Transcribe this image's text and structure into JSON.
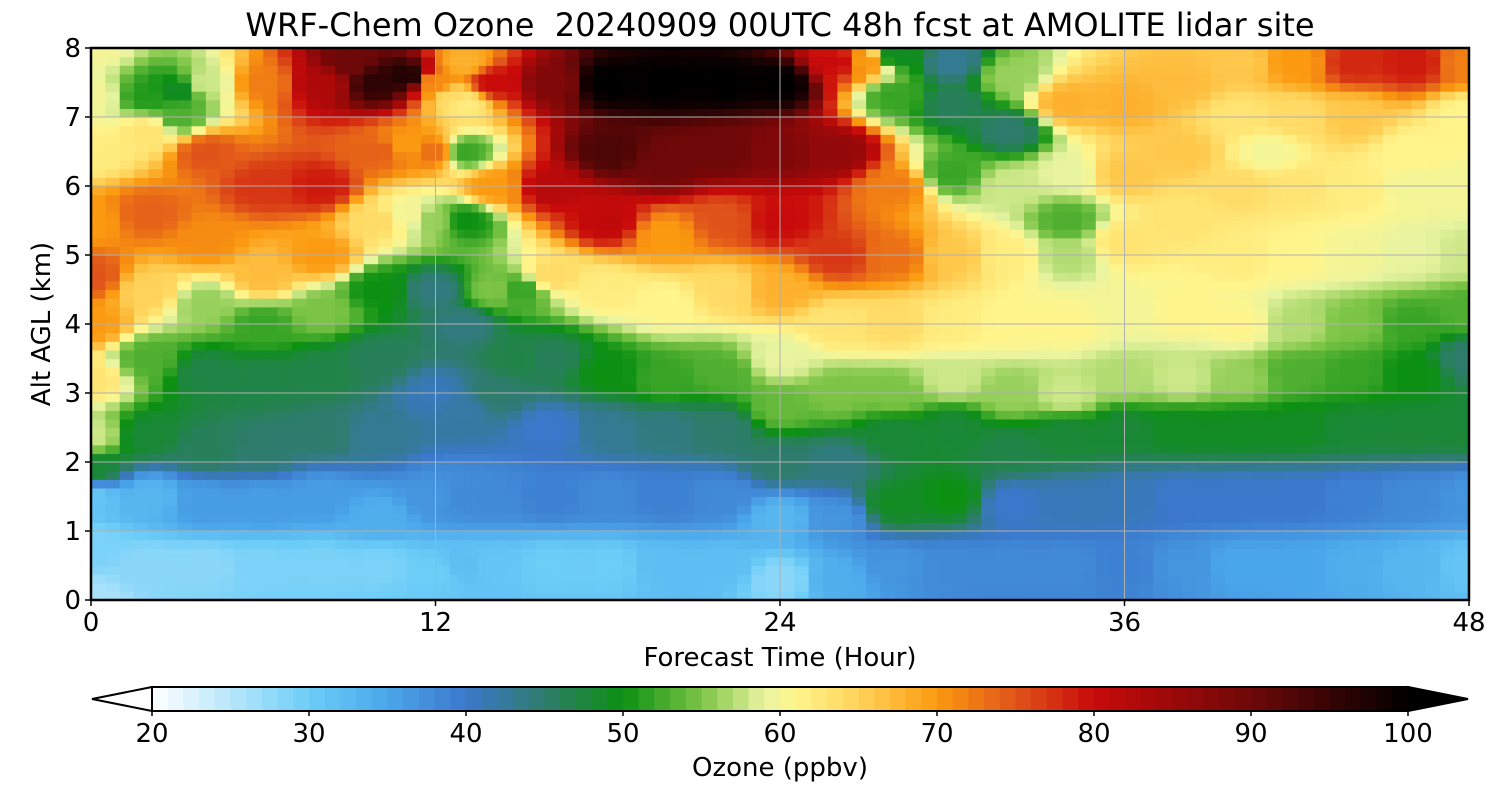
{
  "chart_data": {
    "type": "heatmap",
    "title": "WRF-Chem Ozone  20240909 00UTC 48h fcst at AMOLITE lidar site",
    "xlabel": "Forecast Time (Hour)",
    "ylabel": "Alt AGL (km)",
    "xlim": [
      0,
      48
    ],
    "ylim": [
      0,
      8
    ],
    "x_ticks": [
      "0",
      "12",
      "24",
      "36",
      "48"
    ],
    "y_ticks": [
      "0",
      "1",
      "2",
      "3",
      "4",
      "5",
      "6",
      "7",
      "8"
    ],
    "grid": true,
    "x": [
      0,
      2,
      4,
      6,
      8,
      10,
      12,
      13,
      14,
      16,
      18,
      20,
      22,
      24,
      26,
      28,
      30,
      32,
      34,
      36,
      38,
      40,
      42,
      44,
      46,
      48
    ],
    "y": [
      0,
      0.25,
      0.5,
      0.75,
      1.0,
      1.25,
      1.5,
      1.75,
      2.0,
      2.25,
      2.5,
      2.75,
      3.0,
      3.25,
      3.5,
      3.75,
      4.0,
      4.25,
      4.5,
      4.75,
      5.0,
      5.25,
      5.5,
      5.75,
      6.0,
      6.25,
      6.5,
      6.75,
      7.0,
      7.25,
      7.5,
      7.75,
      8.0
    ],
    "z_units": "ppbv",
    "colorbar": {
      "label": "Ozone  (ppbv)",
      "ticks": [
        "20",
        "30",
        "40",
        "50",
        "60",
        "70",
        "80",
        "90",
        "100"
      ],
      "min": 20,
      "max": 100,
      "extend": "both"
    }
  },
  "colorscale": [
    [
      20,
      "#ffffff"
    ],
    [
      25,
      "#b8e6fb"
    ],
    [
      30,
      "#6ccdf7"
    ],
    [
      35,
      "#4aa6ea"
    ],
    [
      40,
      "#3b78cc"
    ],
    [
      45,
      "#2e7c6c"
    ],
    [
      50,
      "#0c9012"
    ],
    [
      55,
      "#7cc445"
    ],
    [
      59,
      "#e8f4a0"
    ],
    [
      61,
      "#fff58c"
    ],
    [
      65,
      "#ffd35a"
    ],
    [
      70,
      "#fb9a10"
    ],
    [
      75,
      "#e0541a"
    ],
    [
      80,
      "#c90a0a"
    ],
    [
      90,
      "#6e0808"
    ],
    [
      100,
      "#000000"
    ]
  ]
}
